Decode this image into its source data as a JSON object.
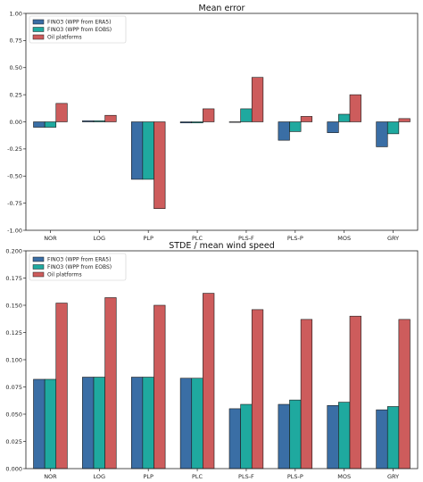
{
  "colors": {
    "era5": "#3a6ea5",
    "eobs": "#1fa99f",
    "oil": "#cd5c5c",
    "edge": "#1a1a1a"
  },
  "chart_data": [
    {
      "type": "bar",
      "title": "Mean error",
      "categories": [
        "NOR",
        "LOG",
        "PLP",
        "PLC",
        "PLS-F",
        "PLS-P",
        "MOS",
        "GRY"
      ],
      "ylim": [
        -1.0,
        1.0
      ],
      "yticks": [
        -1.0,
        -0.75,
        -0.5,
        -0.25,
        0.0,
        0.25,
        0.5,
        0.75,
        1.0
      ],
      "ytick_labels": [
        "-1.00",
        "-0.75",
        "-0.50",
        "-0.25",
        "0.00",
        "0.25",
        "0.50",
        "0.75",
        "1.00"
      ],
      "legend_placement": "top-left",
      "grid": false,
      "series": [
        {
          "name": "FINO3 (WPP from ERA5)",
          "color_key": "era5",
          "values": [
            -0.05,
            0.01,
            -0.53,
            -0.01,
            0.0,
            -0.17,
            -0.1,
            -0.23
          ]
        },
        {
          "name": "FINO3 (WPP from EOBS)",
          "color_key": "eobs",
          "values": [
            -0.05,
            0.01,
            -0.53,
            -0.01,
            0.12,
            -0.09,
            0.07,
            -0.11
          ]
        },
        {
          "name": "Oil platforms",
          "color_key": "oil",
          "values": [
            0.17,
            0.06,
            -0.8,
            0.12,
            0.41,
            0.05,
            0.25,
            0.03
          ]
        }
      ]
    },
    {
      "type": "bar",
      "title": "STDE / mean wind speed",
      "categories": [
        "NOR",
        "LOG",
        "PLP",
        "PLC",
        "PLS-F",
        "PLS-P",
        "MOS",
        "GRY"
      ],
      "ylim": [
        0.0,
        0.2
      ],
      "yticks": [
        0.0,
        0.025,
        0.05,
        0.075,
        0.1,
        0.125,
        0.15,
        0.175,
        0.2
      ],
      "ytick_labels": [
        "0.000",
        "0.025",
        "0.050",
        "0.075",
        "0.100",
        "0.125",
        "0.150",
        "0.175",
        "0.200"
      ],
      "legend_placement": "top-left",
      "grid": false,
      "series": [
        {
          "name": "FINO3 (WPP from ERA5)",
          "color_key": "era5",
          "values": [
            0.082,
            0.084,
            0.084,
            0.083,
            0.055,
            0.059,
            0.058,
            0.054
          ]
        },
        {
          "name": "FINO3 (WPP from EOBS)",
          "color_key": "eobs",
          "values": [
            0.082,
            0.084,
            0.084,
            0.083,
            0.059,
            0.063,
            0.061,
            0.057
          ]
        },
        {
          "name": "Oil platforms",
          "color_key": "oil",
          "values": [
            0.152,
            0.157,
            0.15,
            0.161,
            0.146,
            0.137,
            0.14,
            0.137
          ]
        }
      ]
    }
  ]
}
